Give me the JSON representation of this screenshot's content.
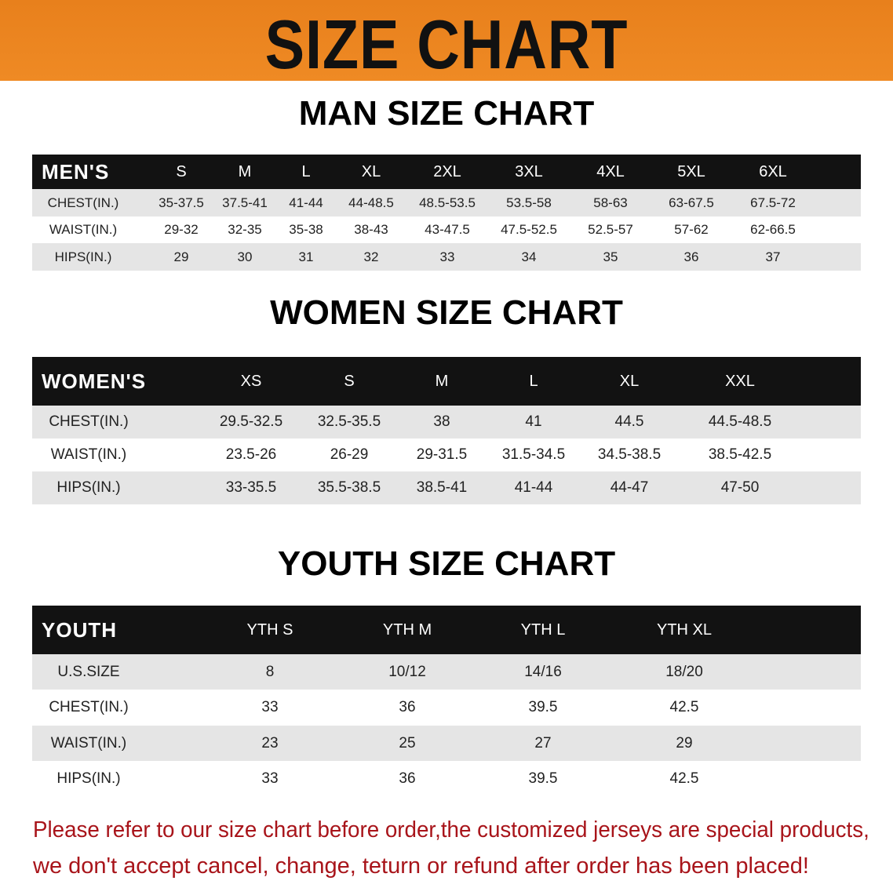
{
  "banner": {
    "title": "SIZE CHART",
    "color": "#ee8622"
  },
  "men": {
    "title": "MAN SIZE CHART",
    "header": [
      "MEN'S",
      "S",
      "M",
      "L",
      "XL",
      "2XL",
      "3XL",
      "4XL",
      "5XL",
      "6XL"
    ],
    "rows": [
      [
        "CHEST(IN.)",
        "35-37.5",
        "37.5-41",
        "41-44",
        "44-48.5",
        "48.5-53.5",
        "53.5-58",
        "58-63",
        "63-67.5",
        "67.5-72"
      ],
      [
        "WAIST(IN.)",
        "29-32",
        "32-35",
        "35-38",
        "38-43",
        "43-47.5",
        "47.5-52.5",
        "52.5-57",
        "57-62",
        "62-66.5"
      ],
      [
        "HIPS(IN.)",
        "29",
        "30",
        "31",
        "32",
        "33",
        "34",
        "35",
        "36",
        "37"
      ]
    ]
  },
  "women": {
    "title": "WOMEN SIZE CHART",
    "header": [
      "WOMEN'S",
      "XS",
      "S",
      "M",
      "L",
      "XL",
      "XXL"
    ],
    "rows": [
      [
        "CHEST(IN.)",
        "29.5-32.5",
        "32.5-35.5",
        "38",
        "41",
        "44.5",
        "44.5-48.5"
      ],
      [
        "WAIST(IN.)",
        "23.5-26",
        "26-29",
        "29-31.5",
        "31.5-34.5",
        "34.5-38.5",
        "38.5-42.5"
      ],
      [
        "HIPS(IN.)",
        "33-35.5",
        "35.5-38.5",
        "38.5-41",
        "41-44",
        "44-47",
        "47-50"
      ]
    ]
  },
  "youth": {
    "title": "YOUTH SIZE CHART",
    "header": [
      "YOUTH",
      "YTH S",
      "YTH M",
      "YTH L",
      "YTH XL"
    ],
    "rows": [
      [
        "U.S.SIZE",
        "8",
        "10/12",
        "14/16",
        "18/20"
      ],
      [
        "CHEST(IN.)",
        "33",
        "36",
        "39.5",
        "42.5"
      ],
      [
        "WAIST(IN.)",
        "23",
        "25",
        "27",
        "29"
      ],
      [
        "HIPS(IN.)",
        "33",
        "36",
        "39.5",
        "42.5"
      ]
    ]
  },
  "note": {
    "line1": "Please refer to our size chart before order,the customized jerseys are special products,",
    "line2": "we don't accept cancel, change, teturn or refund after order has been placed!",
    "color": "#a8141a"
  }
}
